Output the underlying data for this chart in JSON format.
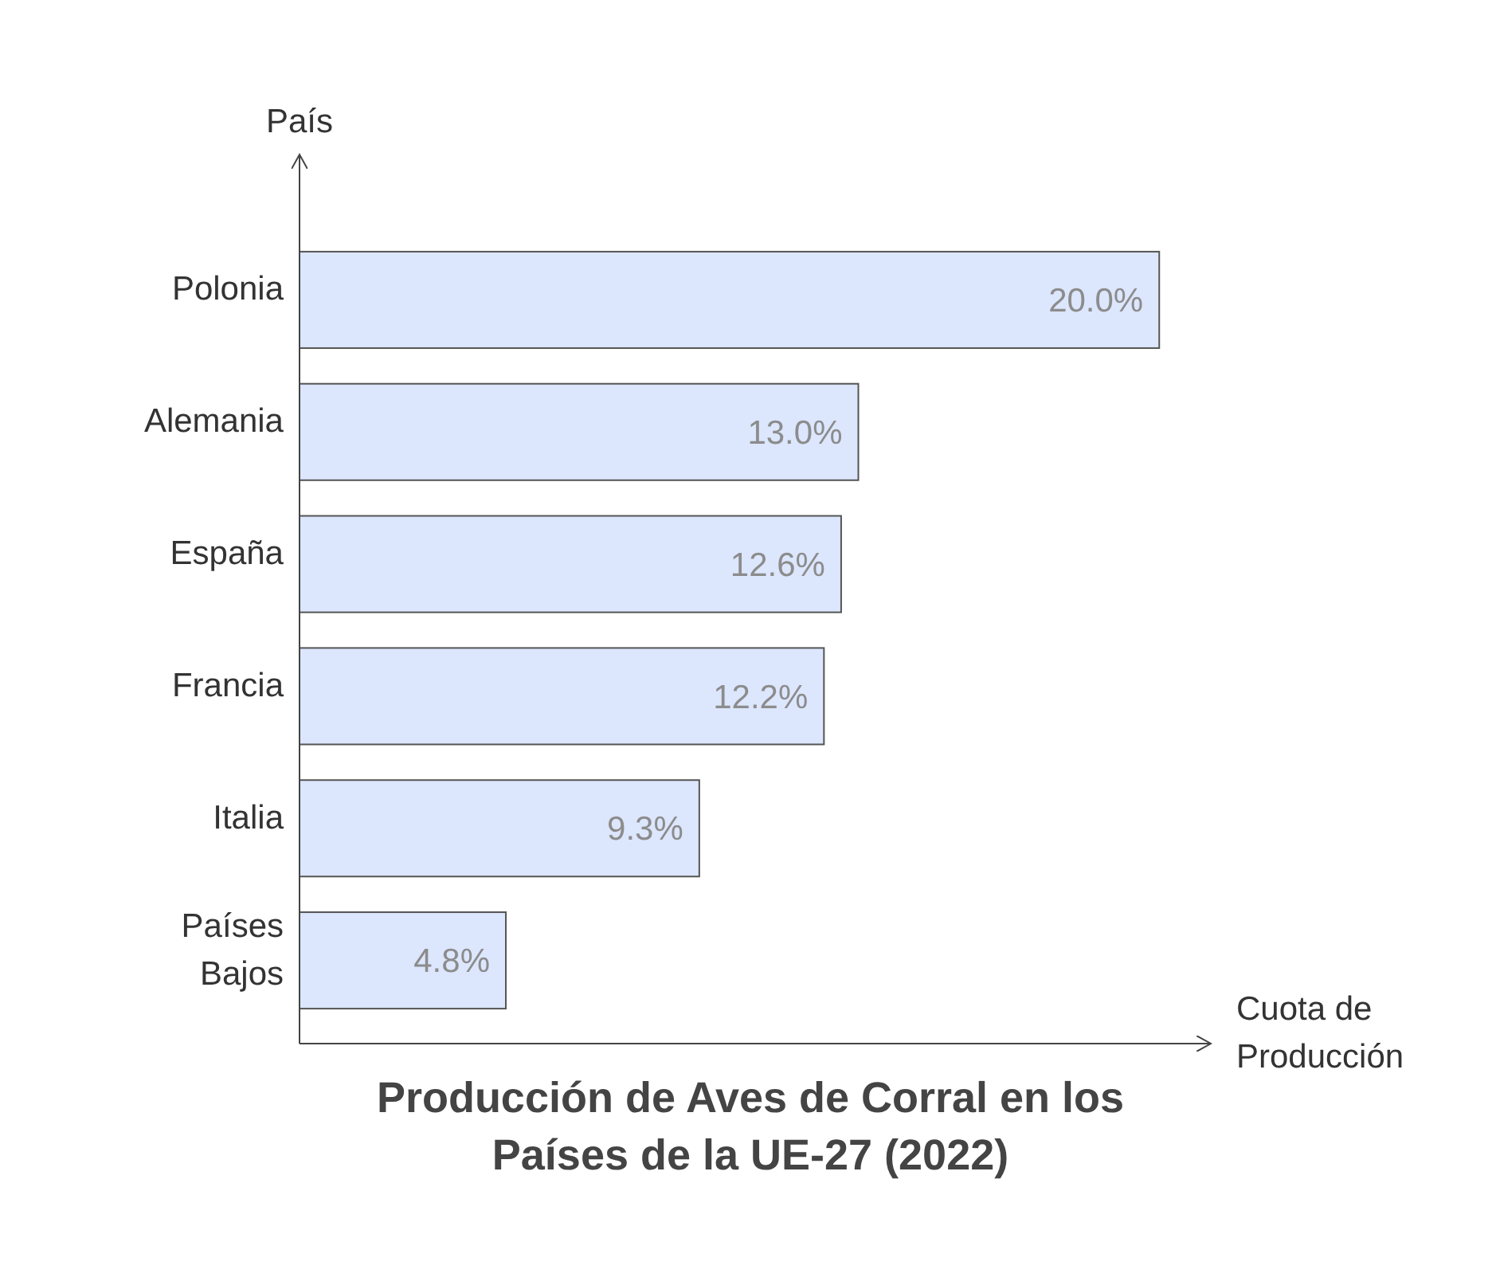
{
  "chart_data": {
    "type": "bar",
    "orientation": "horizontal",
    "title": "Producción de Aves de Corral en los Países de la UE-27 (2022)",
    "xlabel": "Cuota de Producción",
    "ylabel": "País",
    "categories": [
      "Polonia",
      "Alemania",
      "España",
      "Francia",
      "Italia",
      "Países Bajos"
    ],
    "values": [
      20.0,
      13.0,
      12.6,
      12.2,
      9.3,
      4.8
    ],
    "value_labels": [
      "20.0%",
      "13.0%",
      "12.6%",
      "12.2%",
      "9.3%",
      "4.8%"
    ],
    "color": "#dce6fd",
    "xlim": [
      0,
      21.2
    ],
    "tick_labels": "y"
  }
}
